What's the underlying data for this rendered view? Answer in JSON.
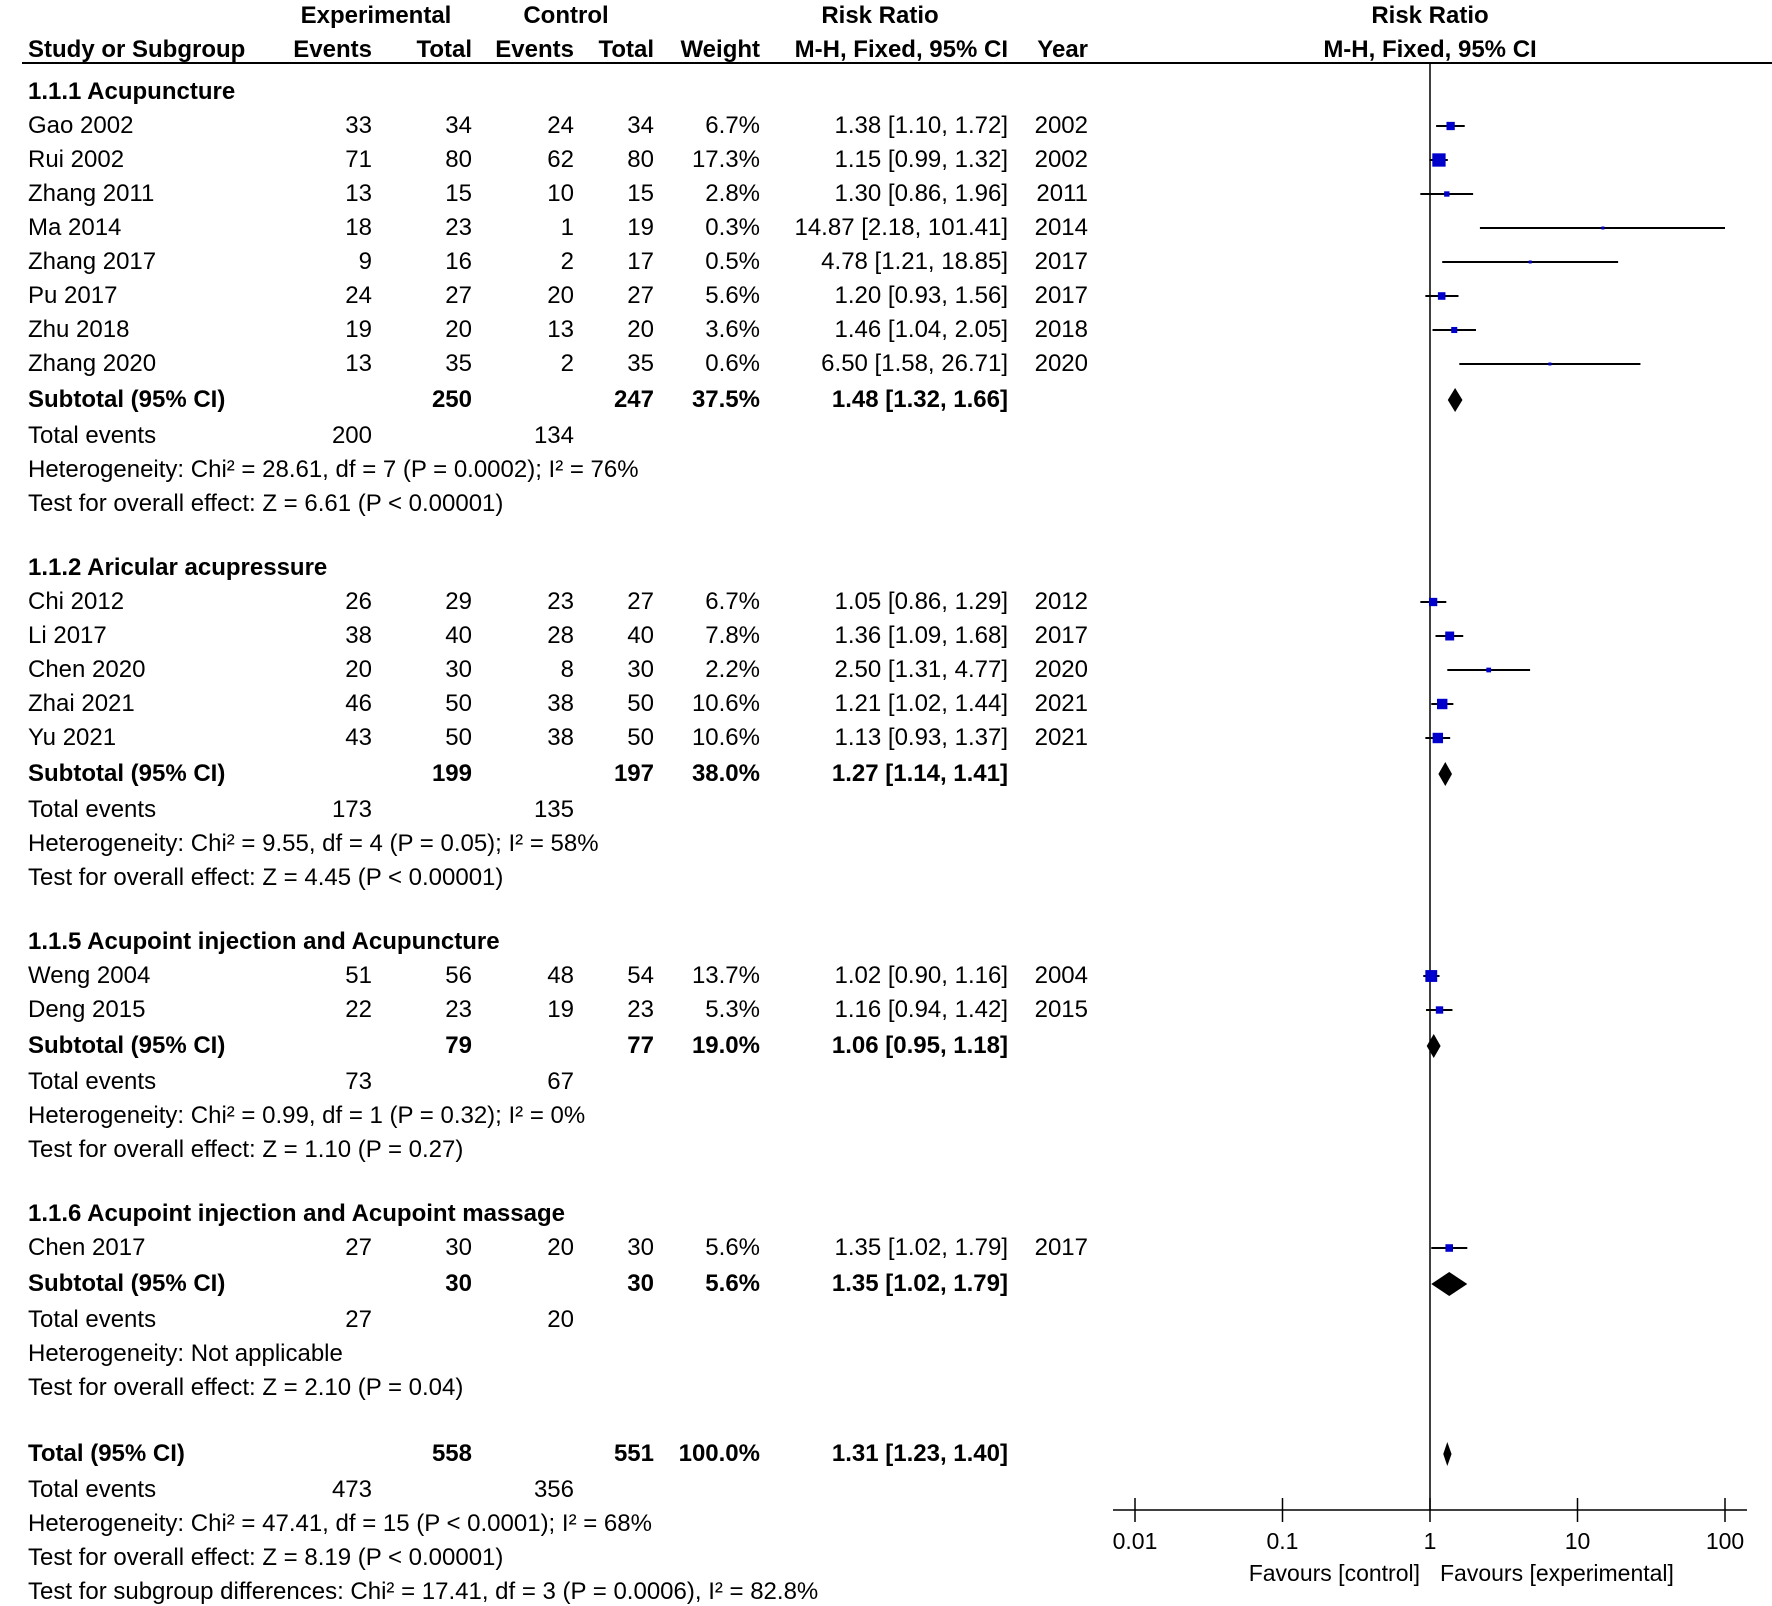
{
  "header": {
    "experimental": "Experimental",
    "control": "Control",
    "risk_ratio": "Risk Ratio",
    "risk_ratio_plot": "Risk Ratio",
    "col_study": "Study or Subgroup",
    "col_exp_events": "Events",
    "col_exp_total": "Total",
    "col_ctl_events": "Events",
    "col_ctl_total": "Total",
    "col_weight": "Weight",
    "col_method": "M-H, Fixed, 95% CI",
    "col_year": "Year",
    "col_method_plot": "M-H, Fixed, 95% CI"
  },
  "rows": [
    {
      "type": "heading",
      "label": "1.1.1 Acupuncture"
    },
    {
      "type": "study",
      "study": "Gao 2002",
      "ee": "33",
      "et": "34",
      "ce": "24",
      "ct": "34",
      "weight": "6.7%",
      "ci": "1.38 [1.10, 1.72]",
      "year": "2002"
    },
    {
      "type": "study",
      "study": "Rui 2002",
      "ee": "71",
      "et": "80",
      "ce": "62",
      "ct": "80",
      "weight": "17.3%",
      "ci": "1.15 [0.99, 1.32]",
      "year": "2002"
    },
    {
      "type": "study",
      "study": "Zhang 2011",
      "ee": "13",
      "et": "15",
      "ce": "10",
      "ct": "15",
      "weight": "2.8%",
      "ci": "1.30 [0.86, 1.96]",
      "year": "2011"
    },
    {
      "type": "study",
      "study": "Ma 2014",
      "ee": "18",
      "et": "23",
      "ce": "1",
      "ct": "19",
      "weight": "0.3%",
      "ci": "14.87 [2.18, 101.41]",
      "year": "2014"
    },
    {
      "type": "study",
      "study": "Zhang 2017",
      "ee": "9",
      "et": "16",
      "ce": "2",
      "ct": "17",
      "weight": "0.5%",
      "ci": "4.78 [1.21, 18.85]",
      "year": "2017"
    },
    {
      "type": "study",
      "study": "Pu 2017",
      "ee": "24",
      "et": "27",
      "ce": "20",
      "ct": "27",
      "weight": "5.6%",
      "ci": "1.20 [0.93, 1.56]",
      "year": "2017"
    },
    {
      "type": "study",
      "study": "Zhu 2018",
      "ee": "19",
      "et": "20",
      "ce": "13",
      "ct": "20",
      "weight": "3.6%",
      "ci": "1.46 [1.04, 2.05]",
      "year": "2018"
    },
    {
      "type": "study",
      "study": "Zhang 2020",
      "ee": "13",
      "et": "35",
      "ce": "2",
      "ct": "35",
      "weight": "0.6%",
      "ci": "6.50 [1.58, 26.71]",
      "year": "2020"
    },
    {
      "type": "subtotal",
      "study": "Subtotal (95% CI)",
      "et": "250",
      "ct": "247",
      "weight": "37.5%",
      "ci": "1.48 [1.32, 1.66]"
    },
    {
      "type": "events",
      "label": "Total events",
      "ee": "200",
      "ce": "134"
    },
    {
      "type": "note",
      "label": "Heterogeneity: Chi² = 28.61, df = 7 (P = 0.0002); I² = 76%"
    },
    {
      "type": "note",
      "label": "Test for overall effect: Z = 6.61 (P < 0.00001)"
    },
    {
      "type": "gap"
    },
    {
      "type": "heading",
      "label": "1.1.2 Aricular acupressure"
    },
    {
      "type": "study",
      "study": "Chi 2012",
      "ee": "26",
      "et": "29",
      "ce": "23",
      "ct": "27",
      "weight": "6.7%",
      "ci": "1.05 [0.86, 1.29]",
      "year": "2012"
    },
    {
      "type": "study",
      "study": "Li 2017",
      "ee": "38",
      "et": "40",
      "ce": "28",
      "ct": "40",
      "weight": "7.8%",
      "ci": "1.36 [1.09, 1.68]",
      "year": "2017"
    },
    {
      "type": "study",
      "study": "Chen 2020",
      "ee": "20",
      "et": "30",
      "ce": "8",
      "ct": "30",
      "weight": "2.2%",
      "ci": "2.50 [1.31, 4.77]",
      "year": "2020"
    },
    {
      "type": "study",
      "study": "Zhai 2021",
      "ee": "46",
      "et": "50",
      "ce": "38",
      "ct": "50",
      "weight": "10.6%",
      "ci": "1.21 [1.02, 1.44]",
      "year": "2021"
    },
    {
      "type": "study",
      "study": "Yu 2021",
      "ee": "43",
      "et": "50",
      "ce": "38",
      "ct": "50",
      "weight": "10.6%",
      "ci": "1.13 [0.93, 1.37]",
      "year": "2021"
    },
    {
      "type": "subtotal",
      "study": "Subtotal (95% CI)",
      "et": "199",
      "ct": "197",
      "weight": "38.0%",
      "ci": "1.27 [1.14, 1.41]"
    },
    {
      "type": "events",
      "label": "Total events",
      "ee": "173",
      "ce": "135"
    },
    {
      "type": "note",
      "label": "Heterogeneity: Chi² = 9.55, df = 4 (P = 0.05); I² = 58%"
    },
    {
      "type": "note",
      "label": "Test for overall effect: Z = 4.45 (P < 0.00001)"
    },
    {
      "type": "gap"
    },
    {
      "type": "heading",
      "label": "1.1.5 Acupoint injection and Acupuncture"
    },
    {
      "type": "study",
      "study": "Weng 2004",
      "ee": "51",
      "et": "56",
      "ce": "48",
      "ct": "54",
      "weight": "13.7%",
      "ci": "1.02 [0.90, 1.16]",
      "year": "2004"
    },
    {
      "type": "study",
      "study": "Deng 2015",
      "ee": "22",
      "et": "23",
      "ce": "19",
      "ct": "23",
      "weight": "5.3%",
      "ci": "1.16 [0.94, 1.42]",
      "year": "2015"
    },
    {
      "type": "subtotal",
      "study": "Subtotal (95% CI)",
      "et": "79",
      "ct": "77",
      "weight": "19.0%",
      "ci": "1.06 [0.95, 1.18]"
    },
    {
      "type": "events",
      "label": "Total events",
      "ee": "73",
      "ce": "67"
    },
    {
      "type": "note",
      "label": "Heterogeneity: Chi² = 0.99, df = 1 (P = 0.32); I² = 0%"
    },
    {
      "type": "note",
      "label": "Test for overall effect: Z = 1.10 (P = 0.27)"
    },
    {
      "type": "gap"
    },
    {
      "type": "heading",
      "label": "1.1.6 Acupoint injection and Acupoint massage"
    },
    {
      "type": "study",
      "study": "Chen 2017",
      "ee": "27",
      "et": "30",
      "ce": "20",
      "ct": "30",
      "weight": "5.6%",
      "ci": "1.35 [1.02, 1.79]",
      "year": "2017"
    },
    {
      "type": "subtotal",
      "study": "Subtotal (95% CI)",
      "et": "30",
      "ct": "30",
      "weight": "5.6%",
      "ci": "1.35 [1.02, 1.79]"
    },
    {
      "type": "events",
      "label": "Total events",
      "ee": "27",
      "ce": "20"
    },
    {
      "type": "note",
      "label": "Heterogeneity: Not applicable"
    },
    {
      "type": "note",
      "label": "Test for overall effect: Z = 2.10 (P = 0.04)"
    },
    {
      "type": "gap"
    },
    {
      "type": "subtotal",
      "study": "Total (95% CI)",
      "et": "558",
      "ct": "551",
      "weight": "100.0%",
      "ci": "1.31 [1.23, 1.40]"
    },
    {
      "type": "events",
      "label": "Total events",
      "ee": "473",
      "ce": "356"
    },
    {
      "type": "note",
      "label": "Heterogeneity: Chi² = 47.41, df = 15 (P < 0.0001); I² = 68%"
    },
    {
      "type": "note",
      "label": "Test for overall effect: Z = 8.19 (P < 0.00001)"
    },
    {
      "type": "note",
      "label": "Test for subgroup differences: Chi² = 17.41, df = 3 (P = 0.0006), I² = 82.8%"
    }
  ],
  "axis": {
    "ticks": [
      "0.01",
      "0.1",
      "1",
      "10",
      "100"
    ],
    "favours_left": "Favours [control]",
    "favours_right": "Favours [experimental]"
  },
  "colors": {
    "study_marker": "#0000cc",
    "diamond": "#000000",
    "line": "#000000"
  },
  "chart_data": {
    "type": "forest",
    "title": "Risk Ratio",
    "method": "M-H, Fixed, 95% CI",
    "scale": "log",
    "xlim": [
      0.01,
      100
    ],
    "reference_line": 1,
    "studies": [
      {
        "name": "Gao 2002",
        "rr": 1.38,
        "lo": 1.1,
        "hi": 1.72,
        "weight": 6.7,
        "subgroup": "1.1.1 Acupuncture"
      },
      {
        "name": "Rui 2002",
        "rr": 1.15,
        "lo": 0.99,
        "hi": 1.32,
        "weight": 17.3,
        "subgroup": "1.1.1 Acupuncture"
      },
      {
        "name": "Zhang 2011",
        "rr": 1.3,
        "lo": 0.86,
        "hi": 1.96,
        "weight": 2.8,
        "subgroup": "1.1.1 Acupuncture"
      },
      {
        "name": "Ma 2014",
        "rr": 14.87,
        "lo": 2.18,
        "hi": 101.41,
        "weight": 0.3,
        "subgroup": "1.1.1 Acupuncture"
      },
      {
        "name": "Zhang 2017",
        "rr": 4.78,
        "lo": 1.21,
        "hi": 18.85,
        "weight": 0.5,
        "subgroup": "1.1.1 Acupuncture"
      },
      {
        "name": "Pu 2017",
        "rr": 1.2,
        "lo": 0.93,
        "hi": 1.56,
        "weight": 5.6,
        "subgroup": "1.1.1 Acupuncture"
      },
      {
        "name": "Zhu 2018",
        "rr": 1.46,
        "lo": 1.04,
        "hi": 2.05,
        "weight": 3.6,
        "subgroup": "1.1.1 Acupuncture"
      },
      {
        "name": "Zhang 2020",
        "rr": 6.5,
        "lo": 1.58,
        "hi": 26.71,
        "weight": 0.6,
        "subgroup": "1.1.1 Acupuncture"
      },
      {
        "name": "Chi 2012",
        "rr": 1.05,
        "lo": 0.86,
        "hi": 1.29,
        "weight": 6.7,
        "subgroup": "1.1.2 Aricular acupressure"
      },
      {
        "name": "Li 2017",
        "rr": 1.36,
        "lo": 1.09,
        "hi": 1.68,
        "weight": 7.8,
        "subgroup": "1.1.2 Aricular acupressure"
      },
      {
        "name": "Chen 2020",
        "rr": 2.5,
        "lo": 1.31,
        "hi": 4.77,
        "weight": 2.2,
        "subgroup": "1.1.2 Aricular acupressure"
      },
      {
        "name": "Zhai 2021",
        "rr": 1.21,
        "lo": 1.02,
        "hi": 1.44,
        "weight": 10.6,
        "subgroup": "1.1.2 Aricular acupressure"
      },
      {
        "name": "Yu 2021",
        "rr": 1.13,
        "lo": 0.93,
        "hi": 1.37,
        "weight": 10.6,
        "subgroup": "1.1.2 Aricular acupressure"
      },
      {
        "name": "Weng 2004",
        "rr": 1.02,
        "lo": 0.9,
        "hi": 1.16,
        "weight": 13.7,
        "subgroup": "1.1.5 Acupoint injection and Acupuncture"
      },
      {
        "name": "Deng 2015",
        "rr": 1.16,
        "lo": 0.94,
        "hi": 1.42,
        "weight": 5.3,
        "subgroup": "1.1.5 Acupoint injection and Acupuncture"
      },
      {
        "name": "Chen 2017",
        "rr": 1.35,
        "lo": 1.02,
        "hi": 1.79,
        "weight": 5.6,
        "subgroup": "1.1.6 Acupoint injection and Acupoint massage"
      }
    ],
    "pooled": [
      {
        "name": "Subtotal 1.1.1",
        "rr": 1.48,
        "lo": 1.32,
        "hi": 1.66
      },
      {
        "name": "Subtotal 1.1.2",
        "rr": 1.27,
        "lo": 1.14,
        "hi": 1.41
      },
      {
        "name": "Subtotal 1.1.5",
        "rr": 1.06,
        "lo": 0.95,
        "hi": 1.18
      },
      {
        "name": "Subtotal 1.1.6",
        "rr": 1.35,
        "lo": 1.02,
        "hi": 1.79
      },
      {
        "name": "Total",
        "rr": 1.31,
        "lo": 1.23,
        "hi": 1.4
      }
    ],
    "xlabel_left": "Favours [control]",
    "xlabel_right": "Favours [experimental]"
  }
}
